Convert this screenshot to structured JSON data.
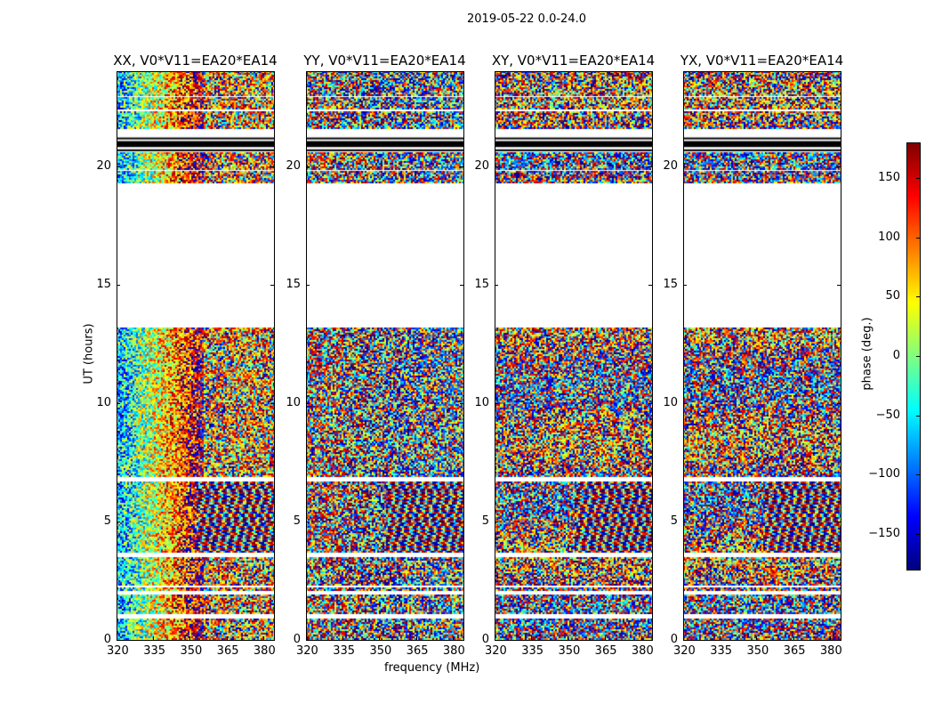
{
  "chart_data": {
    "type": "heatmap",
    "title": "2019-05-22 0.0-24.0",
    "xlabel": "frequency (MHz)",
    "ylabel": "UT (hours)",
    "xlim": [
      320,
      384.4
    ],
    "ylim": [
      0,
      24
    ],
    "xticks": [
      320,
      335,
      350,
      365,
      380
    ],
    "yticks": [
      0,
      5,
      10,
      15,
      20
    ],
    "panels": [
      {
        "title": "XX, V0*V11=EA20*EA14",
        "structure": "strong"
      },
      {
        "title": "YY, V0*V11=EA20*EA14",
        "structure": "weak"
      },
      {
        "title": "XY, V0*V11=EA20*EA14",
        "structure": "noise"
      },
      {
        "title": "YX, V0*V11=EA20*EA14",
        "structure": "noise"
      }
    ],
    "data_segments_hours": [
      [
        0.05,
        0.9
      ],
      [
        1.1,
        1.9
      ],
      [
        2.05,
        2.2
      ],
      [
        2.3,
        3.5
      ],
      [
        3.7,
        6.7
      ],
      [
        6.9,
        13.2
      ],
      [
        19.3,
        19.8
      ],
      [
        19.85,
        20.6
      ],
      [
        21.6,
        22.3
      ],
      [
        22.4,
        22.9
      ],
      [
        23.0,
        24.0
      ]
    ],
    "flagged_black_hours": [
      [
        20.65,
        20.7
      ],
      [
        20.8,
        21.05
      ],
      [
        21.15,
        21.2
      ]
    ],
    "colorbar": {
      "label": "phase (deg.)",
      "range": [
        -180,
        180
      ],
      "ticks": [
        150,
        100,
        50,
        0,
        -50,
        -100,
        -150
      ],
      "tick_labels": [
        "150",
        "100",
        "50",
        "0",
        "−50",
        "−100",
        "−150"
      ],
      "colormap": "jet"
    }
  }
}
